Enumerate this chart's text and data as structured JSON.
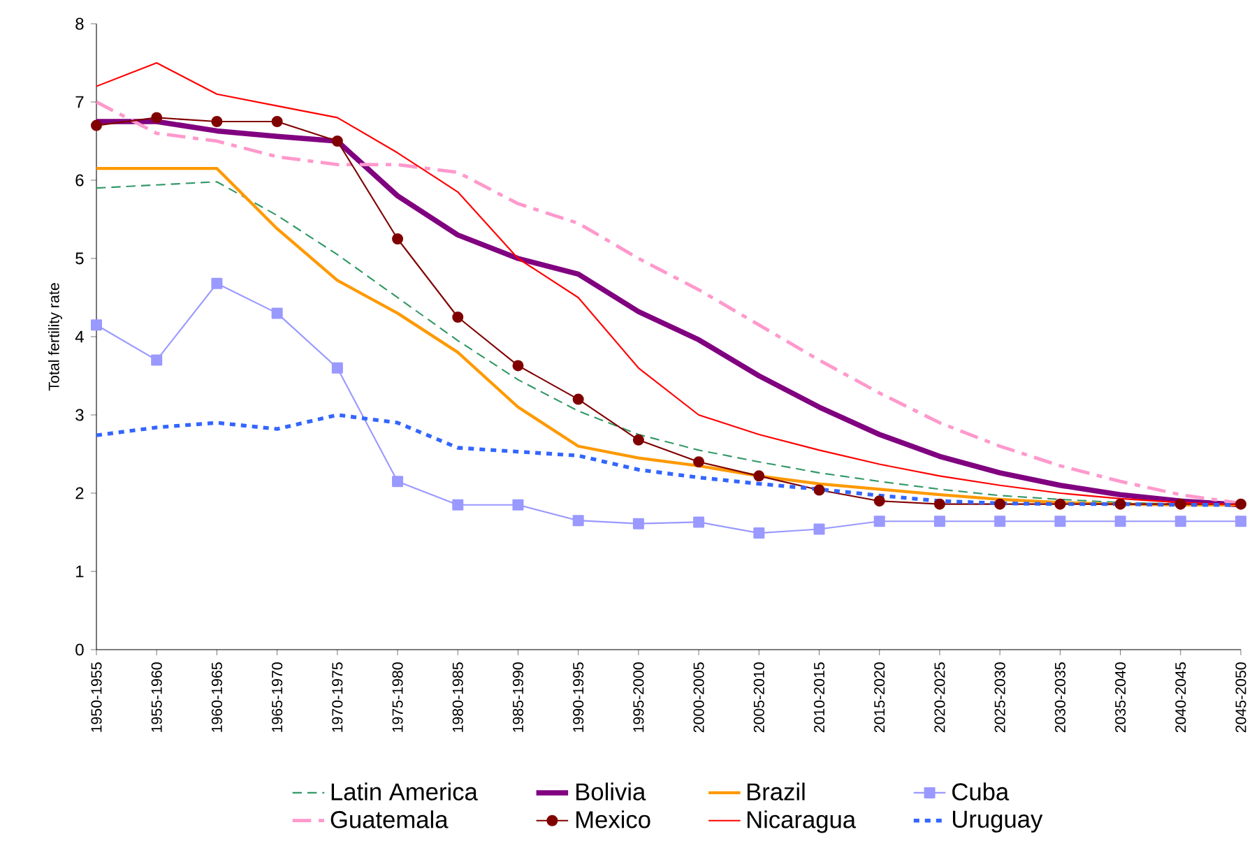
{
  "chart_data": {
    "type": "line",
    "ylabel": "Total fertility rate",
    "categories": [
      "1950-1955",
      "1955-1960",
      "1960-1965",
      "1965-1970",
      "1970-1975",
      "1975-1980",
      "1980-1985",
      "1985-1990",
      "1990-1995",
      "1995-2000",
      "2000-2005",
      "2005-2010",
      "2010-2015",
      "2015-2020",
      "2020-2025",
      "2025-2030",
      "2030-2035",
      "2035-2040",
      "2040-2045",
      "2045-2050"
    ],
    "ylim": [
      0,
      8
    ],
    "yticks": [
      0,
      1,
      2,
      3,
      4,
      5,
      6,
      7,
      8
    ],
    "grid": false,
    "legend": "bottom",
    "series": [
      {
        "name": "Latin America",
        "color": "#339966",
        "line_style": "dashed",
        "marker": "none",
        "values": [
          5.9,
          5.94,
          5.98,
          5.55,
          5.05,
          4.5,
          3.95,
          3.45,
          3.05,
          2.75,
          2.55,
          2.4,
          2.26,
          2.15,
          2.05,
          1.97,
          1.92,
          1.88,
          1.86,
          null
        ]
      },
      {
        "name": "Bolivia",
        "color": "#800080",
        "line_style": "solid",
        "marker": "none",
        "values": [
          6.75,
          6.75,
          6.63,
          6.56,
          6.5,
          5.8,
          5.3,
          5.0,
          4.8,
          4.32,
          3.96,
          3.5,
          3.1,
          2.75,
          2.47,
          2.26,
          2.1,
          1.98,
          1.9,
          1.85
        ]
      },
      {
        "name": "Brazil",
        "color": "#ff9900",
        "line_style": "solid",
        "marker": "none",
        "values": [
          6.15,
          6.15,
          6.15,
          5.38,
          4.72,
          4.3,
          3.8,
          3.1,
          2.6,
          2.45,
          2.35,
          2.22,
          2.12,
          2.05,
          1.98,
          1.92,
          1.88,
          1.86,
          1.85,
          1.85
        ]
      },
      {
        "name": "Cuba",
        "color": "#9999ff",
        "line_style": "solid",
        "marker": "square",
        "values": [
          4.15,
          3.7,
          4.68,
          4.3,
          3.6,
          2.15,
          1.85,
          1.85,
          1.65,
          1.61,
          1.63,
          1.49,
          1.54,
          1.64,
          1.64,
          1.64,
          1.64,
          1.64,
          1.64,
          1.64
        ]
      },
      {
        "name": "Guatemala",
        "color": "#ff99cc",
        "line_style": "dashdot",
        "marker": "none",
        "values": [
          7.0,
          6.6,
          6.5,
          6.3,
          6.2,
          6.2,
          6.1,
          5.7,
          5.45,
          5.0,
          4.6,
          4.15,
          3.7,
          3.28,
          2.9,
          2.6,
          2.35,
          2.15,
          1.98,
          1.87
        ]
      },
      {
        "name": "Mexico",
        "color": "#800000",
        "line_style": "solid",
        "marker": "circle",
        "values": [
          6.7,
          6.8,
          6.75,
          6.75,
          6.5,
          5.25,
          4.25,
          3.63,
          3.2,
          2.68,
          2.4,
          2.22,
          2.04,
          1.9,
          1.86,
          1.86,
          1.86,
          1.86,
          1.86,
          1.86
        ]
      },
      {
        "name": "Nicaragua",
        "color": "#ff0000",
        "line_style": "solid",
        "marker": "none",
        "values": [
          7.2,
          7.5,
          7.1,
          6.95,
          6.8,
          6.35,
          5.85,
          5.0,
          4.5,
          3.6,
          3.0,
          2.75,
          2.55,
          2.37,
          2.22,
          2.1,
          2.0,
          1.93,
          1.88,
          1.85
        ]
      },
      {
        "name": "Uruguay",
        "color": "#3366ff",
        "line_style": "dotted",
        "marker": "none",
        "values": [
          2.74,
          2.84,
          2.9,
          2.82,
          3.0,
          2.9,
          2.58,
          2.53,
          2.48,
          2.3,
          2.2,
          2.12,
          2.05,
          1.97,
          1.9,
          1.87,
          1.86,
          1.86,
          1.85,
          1.85
        ]
      }
    ]
  }
}
